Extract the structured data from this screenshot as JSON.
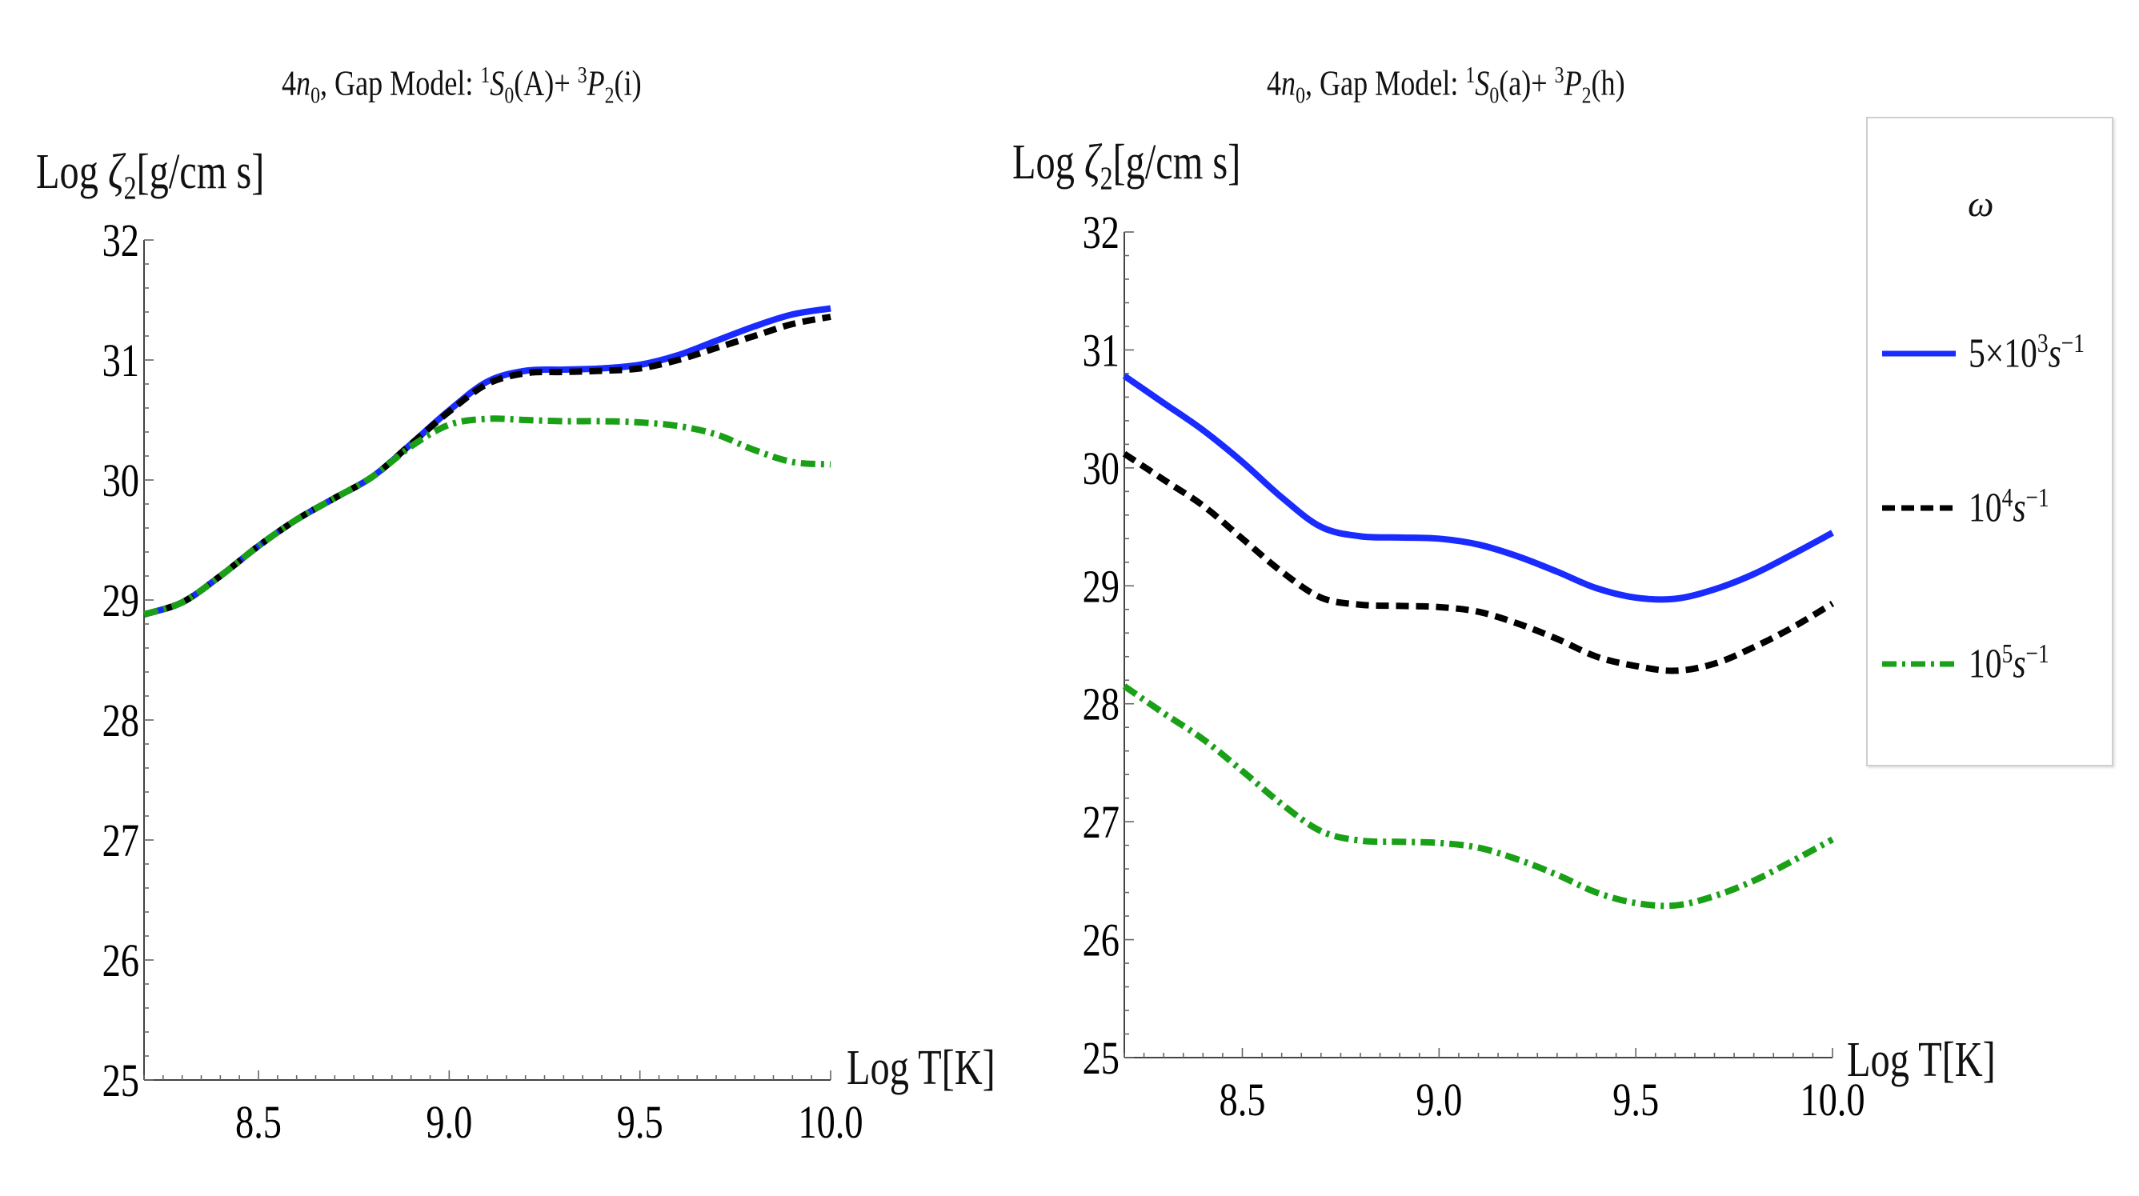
{
  "chart_data": [
    {
      "type": "line",
      "title": "4n0, Gap Model: 1S0(A)+ 3P2(i)",
      "title_parts": {
        "lead": "4",
        "n": "n",
        "n_sub": "0",
        "mid": ", Gap Model: ",
        "sup1": "1",
        "S": "S",
        "S_sub": "0",
        "state1": "(A)+ ",
        "sup3": "3",
        "P": "P",
        "P_sub": "2",
        "state2": "(i)"
      },
      "ylabel": "Log ζ2[g/cm s]",
      "ylabel_parts": {
        "lead": "Log ",
        "zeta": "ζ",
        "sub": "2",
        "unit": "[g/cm s]"
      },
      "xlabel": "Log T[K]",
      "xlim": [
        8.2,
        10.0
      ],
      "ylim": [
        25,
        32
      ],
      "xticks": [
        8.5,
        9.0,
        9.5,
        10.0
      ],
      "xtick_labels": [
        "8.5",
        "9.0",
        "9.5",
        "10.0"
      ],
      "yticks": [
        25,
        26,
        27,
        28,
        29,
        30,
        31,
        32
      ],
      "ytick_labels": [
        "25",
        "26",
        "27",
        "28",
        "29",
        "30",
        "31",
        "32"
      ],
      "x": [
        8.2,
        8.3,
        8.4,
        8.5,
        8.6,
        8.7,
        8.8,
        8.9,
        9.0,
        9.1,
        9.2,
        9.3,
        9.4,
        9.5,
        9.6,
        9.7,
        9.8,
        9.9,
        10.0
      ],
      "series": [
        {
          "name": "5×10^3 s^-1",
          "color": "#1a2bff",
          "dash": "solid",
          "values": [
            28.88,
            28.98,
            29.2,
            29.45,
            29.67,
            29.85,
            30.03,
            30.3,
            30.58,
            30.82,
            30.91,
            30.92,
            30.93,
            30.96,
            31.04,
            31.16,
            31.28,
            31.38,
            31.43
          ]
        },
        {
          "name": "10^4 s^-1",
          "color": "#000000",
          "dash": "dashed",
          "values": [
            28.88,
            28.98,
            29.2,
            29.45,
            29.67,
            29.85,
            30.03,
            30.3,
            30.57,
            30.8,
            30.89,
            30.9,
            30.91,
            30.93,
            31.0,
            31.1,
            31.2,
            31.3,
            31.36
          ]
        },
        {
          "name": "10^5 s^-1",
          "color": "#1aa016",
          "dash": "dashdot",
          "values": [
            28.88,
            28.98,
            29.2,
            29.45,
            29.67,
            29.85,
            30.03,
            30.28,
            30.46,
            30.51,
            30.5,
            30.49,
            30.49,
            30.48,
            30.45,
            30.38,
            30.25,
            30.15,
            30.13
          ]
        }
      ]
    },
    {
      "type": "line",
      "title": "4n0, Gap Model: 1S0(a)+ 3P2(h)",
      "title_parts": {
        "lead": "4",
        "n": "n",
        "n_sub": "0",
        "mid": ", Gap Model: ",
        "sup1": "1",
        "S": "S",
        "S_sub": "0",
        "state1": "(a)+ ",
        "sup3": "3",
        "P": "P",
        "P_sub": "2",
        "state2": "(h)"
      },
      "ylabel": "Log ζ2[g/cm s]",
      "ylabel_parts": {
        "lead": "Log ",
        "zeta": "ζ",
        "sub": "2",
        "unit": "[g/cm s]"
      },
      "xlabel": "Log T[K]",
      "xlim": [
        8.2,
        10.0
      ],
      "ylim": [
        25,
        32
      ],
      "xticks": [
        8.5,
        9.0,
        9.5,
        10.0
      ],
      "xtick_labels": [
        "8.5",
        "9.0",
        "9.5",
        "10.0"
      ],
      "yticks": [
        25,
        26,
        27,
        28,
        29,
        30,
        31,
        32
      ],
      "ytick_labels": [
        "25",
        "26",
        "27",
        "28",
        "29",
        "30",
        "31",
        "32"
      ],
      "x": [
        8.2,
        8.3,
        8.4,
        8.5,
        8.6,
        8.7,
        8.8,
        8.9,
        9.0,
        9.1,
        9.2,
        9.3,
        9.4,
        9.5,
        9.6,
        9.7,
        9.8,
        9.9,
        10.0
      ],
      "series": [
        {
          "name": "5×10^3 s^-1",
          "color": "#1a2bff",
          "dash": "solid",
          "values": [
            30.78,
            30.55,
            30.32,
            30.05,
            29.75,
            29.5,
            29.42,
            29.41,
            29.4,
            29.35,
            29.25,
            29.12,
            28.98,
            28.9,
            28.89,
            28.97,
            29.1,
            29.27,
            29.45
          ]
        },
        {
          "name": "10^4 s^-1",
          "color": "#000000",
          "dash": "dashed",
          "values": [
            30.12,
            29.9,
            29.68,
            29.4,
            29.12,
            28.9,
            28.84,
            28.83,
            28.82,
            28.78,
            28.68,
            28.55,
            28.4,
            28.32,
            28.28,
            28.34,
            28.48,
            28.65,
            28.85
          ]
        },
        {
          "name": "10^5 s^-1",
          "color": "#1aa016",
          "dash": "dashdot",
          "values": [
            28.15,
            27.92,
            27.7,
            27.43,
            27.15,
            26.92,
            26.84,
            26.83,
            26.82,
            26.78,
            26.68,
            26.55,
            26.4,
            26.31,
            26.29,
            26.37,
            26.5,
            26.67,
            26.85
          ]
        }
      ]
    }
  ],
  "legend": {
    "title": "ω",
    "items": [
      {
        "coef": "5×10",
        "exp": "3",
        "var": "s",
        "var_exp": "−1",
        "color": "#1a2bff",
        "dash": "solid"
      },
      {
        "coef": "10",
        "exp": "4",
        "var": "s",
        "var_exp": "−1",
        "color": "#000000",
        "dash": "dashed"
      },
      {
        "coef": "10",
        "exp": "5",
        "var": "s",
        "var_exp": "−1",
        "color": "#1aa016",
        "dash": "dashdot"
      }
    ]
  }
}
